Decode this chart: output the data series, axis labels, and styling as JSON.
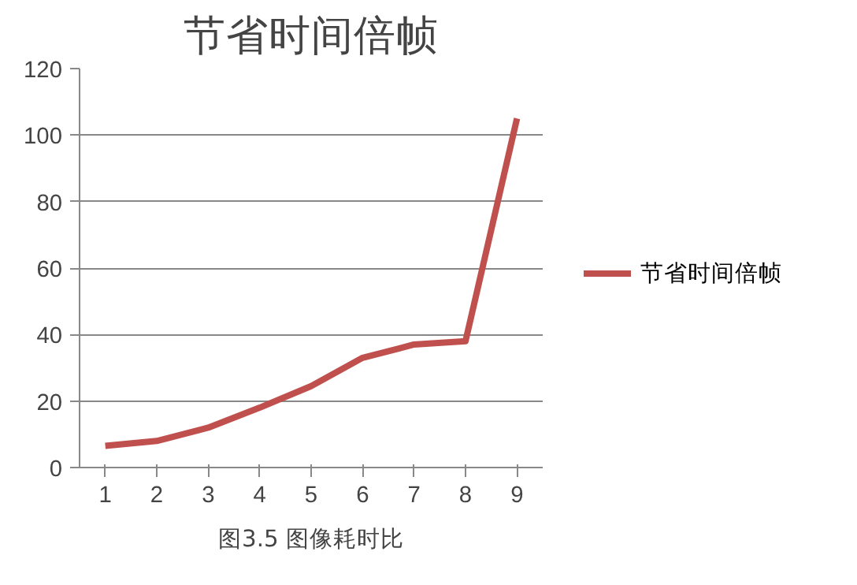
{
  "chart_data": {
    "type": "line",
    "title": "节省时间倍帧",
    "categories": [
      "1",
      "2",
      "3",
      "4",
      "5",
      "6",
      "7",
      "8",
      "9"
    ],
    "series": [
      {
        "name": "节省时间倍帧",
        "color": "#c0504d",
        "values": [
          6.5,
          8,
          12,
          18,
          24.5,
          33,
          37,
          38,
          105
        ]
      }
    ],
    "ylim": [
      0,
      120
    ],
    "yticks": [
      0,
      20,
      40,
      60,
      80,
      100,
      120
    ],
    "grid": "y",
    "legend": "right",
    "marker": "none",
    "line_style": "solid",
    "annotations": [
      "图3.5 图像耗时比"
    ]
  }
}
